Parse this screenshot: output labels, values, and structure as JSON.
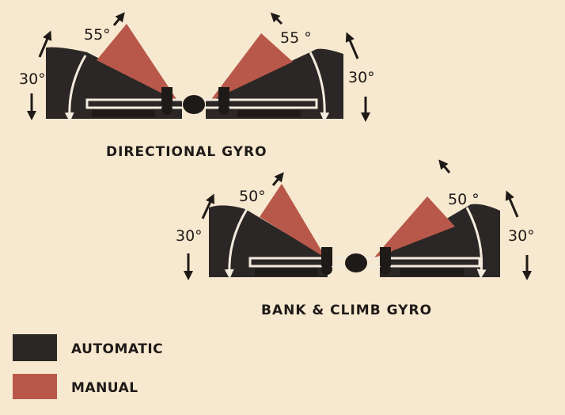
{
  "diagrams": [
    {
      "caption": "DIRECTIONAL GYRO",
      "left_auto_label": "30°",
      "left_manual_label": "55°",
      "right_manual_label": "55 °",
      "right_auto_label": "30°"
    },
    {
      "caption": "BANK & CLIMB GYRO",
      "left_auto_label": "30°",
      "left_manual_label": "50°",
      "right_manual_label": "50 °",
      "right_auto_label": "30°"
    }
  ],
  "legend": [
    {
      "label": "AUTOMATIC",
      "color": "#2b2726"
    },
    {
      "label": "MANUAL",
      "color": "#b8584a"
    }
  ],
  "colors": {
    "background": "#f7e9d0",
    "automatic": "#2b2726",
    "manual": "#b8584a",
    "ink": "#1e1a17",
    "line": "#f3ebdd"
  }
}
